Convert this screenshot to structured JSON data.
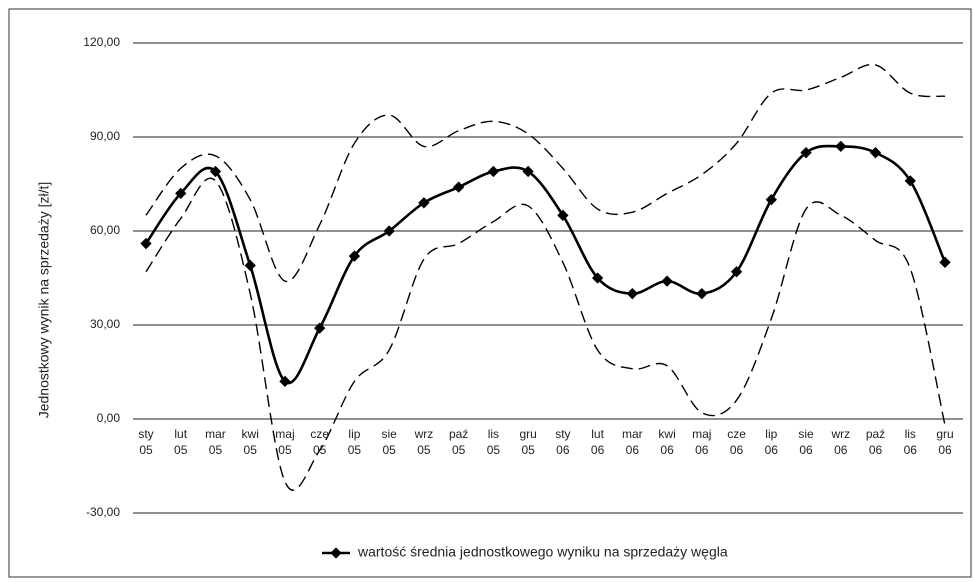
{
  "chart_data": {
    "type": "line",
    "y_label": "Jednostkowy wynik na sprzedaży [zł/t]",
    "categories": [
      "sty 05",
      "lut 05",
      "mar 05",
      "kwi 05",
      "maj 05",
      "cze 05",
      "lip 05",
      "sie 05",
      "wrz 05",
      "paź 05",
      "lis 05",
      "gru 05",
      "sty 06",
      "lut 06",
      "mar 06",
      "kwi 06",
      "maj 06",
      "cze 06",
      "lip 06",
      "sie 06",
      "wrz 06",
      "paź 06",
      "lis 06",
      "gru 06"
    ],
    "series": [
      {
        "name": "wartość średnia jednostkowego wyniku na sprzedaży węgla",
        "color": "#000000",
        "values": [
          56,
          72,
          79,
          49,
          12,
          29,
          52,
          60,
          69,
          74,
          79,
          79,
          65,
          45,
          40,
          44,
          40,
          47,
          70,
          85,
          87,
          85,
          76,
          50
        ]
      },
      {
        "color": "#000000",
        "dashed": true,
        "values": [
          65,
          80,
          84,
          70,
          44,
          62,
          88,
          97,
          87,
          92,
          95,
          91,
          80,
          67,
          66,
          72,
          78,
          88,
          104,
          105,
          109,
          113,
          104,
          103
        ]
      },
      {
        "color": "#000000",
        "dashed": true,
        "values": [
          47,
          64,
          76,
          40,
          -20,
          -10,
          12,
          22,
          51,
          56,
          63,
          68,
          50,
          22,
          16,
          17,
          2,
          6,
          32,
          67,
          65,
          57,
          48,
          -2
        ]
      }
    ],
    "ylim": [
      -30,
      120
    ],
    "yticks": [
      {
        "value": -30,
        "label": "-30,00"
      },
      {
        "value": 0,
        "label": "0,00"
      },
      {
        "value": 30,
        "label": "30,00"
      },
      {
        "value": 60,
        "label": "60,00"
      },
      {
        "value": 90,
        "label": "90,00"
      },
      {
        "value": 120,
        "label": "120,00"
      }
    ],
    "grid": true
  }
}
